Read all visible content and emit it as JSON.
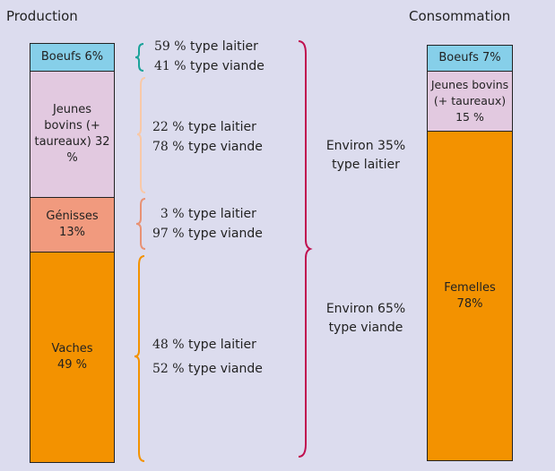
{
  "production": {
    "title": "Production",
    "segments": [
      {
        "label": "Boeufs  6%",
        "color": "#86cfe9"
      },
      {
        "label": "Jeunes bovins (+ taureaux) 32 %",
        "color": "#e2c9e0"
      },
      {
        "label": "Génisses 13%",
        "color": "#f19a7e"
      },
      {
        "label": "Vaches 49 %",
        "color": "#f39200"
      }
    ]
  },
  "breakdown": [
    {
      "l1": "59 %",
      "t1": "type laitier",
      "l2": "41 %",
      "t2": "type viande",
      "color": "#1aa39a"
    },
    {
      "l1": "22 %",
      "t1": " type laitier",
      "l2": "78 %",
      "t2": " type viande",
      "color": "#f8c9a8"
    },
    {
      "l1": "3 %",
      "t1": " type laitier",
      "l2": "97 %",
      "t2": " type viande",
      "color": "#e89274"
    },
    {
      "l1": "48 %",
      "t1": " type laitier",
      "l2": "52 %",
      "t2": " type viande",
      "color": "#f39200"
    }
  ],
  "summary": {
    "color": "#c0104f",
    "dairy": "Environ 35% type laitier",
    "meat": "Environ 65% type viande"
  },
  "consommation": {
    "title": "Consommation",
    "segments": [
      {
        "label": "Boeufs  7%",
        "color": "#86cfe9"
      },
      {
        "label": "Jeunes bovins (+ taureaux) 15 %",
        "color": "#e2c9e0"
      },
      {
        "label": "Femelles 78%",
        "color": "#f39200"
      }
    ]
  }
}
